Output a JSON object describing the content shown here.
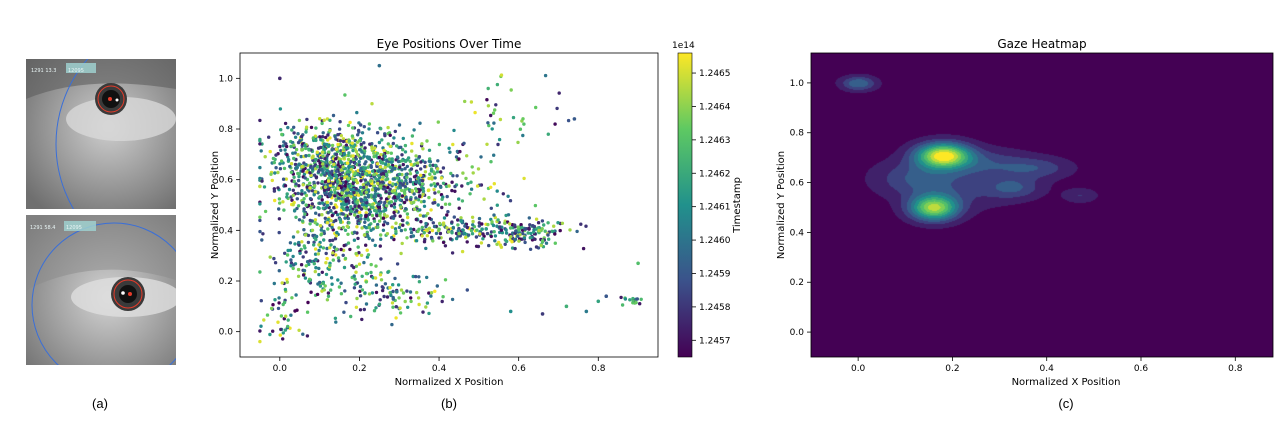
{
  "figure": {
    "captions": [
      "(a)",
      "(b)",
      "(c)"
    ]
  },
  "eye_images": {
    "top": {
      "hud_left": "1291 13.3",
      "hud_right": "12095"
    },
    "bottom": {
      "hud_left": "1291 58.4",
      "hud_right": "12095"
    },
    "circle_color": "#3a6fd8",
    "pupil_marker_color": "#e53b2a"
  },
  "chart_data": [
    {
      "id": "b",
      "type": "scatter",
      "title": "Eye Positions Over Time",
      "xlabel": "Normalized X Position",
      "ylabel": "Normalized Y Position",
      "xlim": [
        -0.1,
        0.95
      ],
      "ylim": [
        -0.1,
        1.1
      ],
      "xticks": [
        "0.0",
        "0.2",
        "0.4",
        "0.6",
        "0.8"
      ],
      "yticks": [
        "0.0",
        "0.2",
        "0.4",
        "0.6",
        "0.8",
        "1.0"
      ],
      "colormap": "viridis",
      "colorbar": {
        "label": "Timestamp",
        "multiplier": "1e14",
        "range": [
          1.24565,
          1.24656
        ],
        "ticks": [
          "1.2457",
          "1.2458",
          "1.2459",
          "1.2460",
          "1.2461",
          "1.2462",
          "1.2463",
          "1.2464",
          "1.2465"
        ]
      },
      "clusters": [
        {
          "x": 0.14,
          "y": 0.65,
          "sx": 0.09,
          "sy": 0.09,
          "n": 700
        },
        {
          "x": 0.2,
          "y": 0.5,
          "sx": 0.1,
          "sy": 0.08,
          "n": 500
        },
        {
          "x": 0.3,
          "y": 0.6,
          "sx": 0.1,
          "sy": 0.08,
          "n": 400
        },
        {
          "x": 0.45,
          "y": 0.4,
          "sx": 0.08,
          "sy": 0.03,
          "n": 160
        },
        {
          "x": 0.62,
          "y": 0.39,
          "sx": 0.06,
          "sy": 0.03,
          "n": 140
        },
        {
          "x": 0.1,
          "y": 0.3,
          "sx": 0.06,
          "sy": 0.06,
          "n": 120
        },
        {
          "x": 0.18,
          "y": 0.2,
          "sx": 0.08,
          "sy": 0.04,
          "n": 60
        },
        {
          "x": 0.28,
          "y": 0.13,
          "sx": 0.08,
          "sy": 0.05,
          "n": 80
        },
        {
          "x": 0.0,
          "y": 0.08,
          "sx": 0.03,
          "sy": 0.07,
          "n": 45
        },
        {
          "x": 0.05,
          "y": 0.72,
          "sx": 0.03,
          "sy": 0.05,
          "n": 40
        },
        {
          "x": 0.58,
          "y": 0.85,
          "sx": 0.07,
          "sy": 0.06,
          "n": 35
        },
        {
          "x": 0.88,
          "y": 0.12,
          "sx": 0.02,
          "sy": 0.01,
          "n": 18
        }
      ],
      "outliers": [
        [
          0.0,
          1.0
        ],
        [
          0.25,
          1.05
        ],
        [
          0.74,
          0.84
        ],
        [
          0.77,
          0.08
        ],
        [
          0.8,
          0.12
        ],
        [
          0.82,
          0.14
        ],
        [
          0.9,
          0.27
        ],
        [
          0.72,
          0.1
        ],
        [
          0.58,
          0.08
        ],
        [
          0.66,
          0.07
        ]
      ]
    },
    {
      "id": "c",
      "type": "heatmap",
      "title": "Gaze Heatmap",
      "xlabel": "Normalized X Position",
      "ylabel": "Normalized Y Position",
      "xlim": [
        -0.1,
        0.88
      ],
      "ylim": [
        -0.1,
        1.12
      ],
      "xticks": [
        "0.0",
        "0.2",
        "0.4",
        "0.6",
        "0.8"
      ],
      "yticks": [
        "0.0",
        "0.2",
        "0.4",
        "0.6",
        "0.8",
        "1.0"
      ],
      "colormap": "viridis",
      "hotspots": [
        {
          "x": 0.18,
          "y": 0.71,
          "sx": 0.04,
          "sy": 0.035,
          "w": 1.0
        },
        {
          "x": 0.16,
          "y": 0.5,
          "sx": 0.035,
          "sy": 0.035,
          "w": 0.85
        },
        {
          "x": 0.0,
          "y": 1.0,
          "sx": 0.025,
          "sy": 0.02,
          "w": 0.35
        },
        {
          "x": 0.12,
          "y": 0.62,
          "sx": 0.06,
          "sy": 0.05,
          "w": 0.22
        },
        {
          "x": 0.28,
          "y": 0.68,
          "sx": 0.06,
          "sy": 0.04,
          "w": 0.18
        },
        {
          "x": 0.33,
          "y": 0.58,
          "sx": 0.04,
          "sy": 0.03,
          "w": 0.22
        },
        {
          "x": 0.38,
          "y": 0.66,
          "sx": 0.05,
          "sy": 0.03,
          "w": 0.2
        },
        {
          "x": 0.47,
          "y": 0.55,
          "sx": 0.025,
          "sy": 0.02,
          "w": 0.15
        },
        {
          "x": 0.22,
          "y": 0.58,
          "sx": 0.08,
          "sy": 0.06,
          "w": 0.15
        }
      ]
    }
  ]
}
